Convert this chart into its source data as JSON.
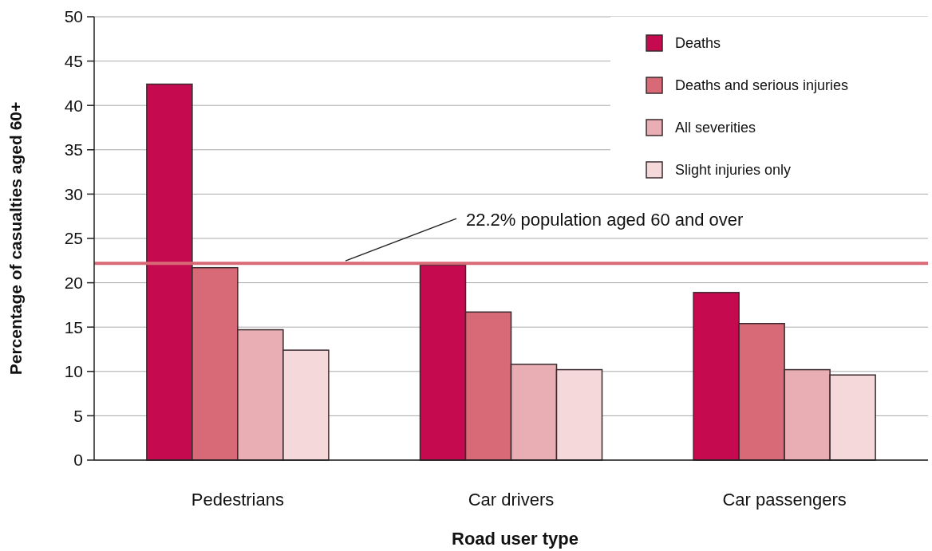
{
  "chart_data": {
    "type": "bar",
    "xlabel": "Road user type",
    "ylabel": "Percentage of casualties aged 60+",
    "categories": [
      "Pedestrians",
      "Car drivers",
      "Car passengers"
    ],
    "series": [
      {
        "name": "Deaths",
        "color": "#c50a4f",
        "values": [
          42.4,
          22.0,
          18.9
        ]
      },
      {
        "name": "Deaths and serious injuries",
        "color": "#d86a78",
        "values": [
          21.7,
          16.7,
          15.4
        ]
      },
      {
        "name": "All severities",
        "color": "#e8aeb3",
        "values": [
          14.7,
          10.8,
          10.2
        ]
      },
      {
        "name": "Slight injuries only",
        "color": "#f4d8da",
        "values": [
          12.4,
          10.2,
          9.6
        ]
      }
    ],
    "ylim": [
      0,
      50
    ],
    "yticks": [
      0,
      5,
      10,
      15,
      20,
      25,
      30,
      35,
      40,
      45,
      50
    ],
    "grid": "y",
    "legend": "top right",
    "ref_lines": [
      {
        "axis": "y",
        "value": 22.2,
        "label": "22.2% population aged 60 and over",
        "color": "#d86a78"
      }
    ]
  }
}
